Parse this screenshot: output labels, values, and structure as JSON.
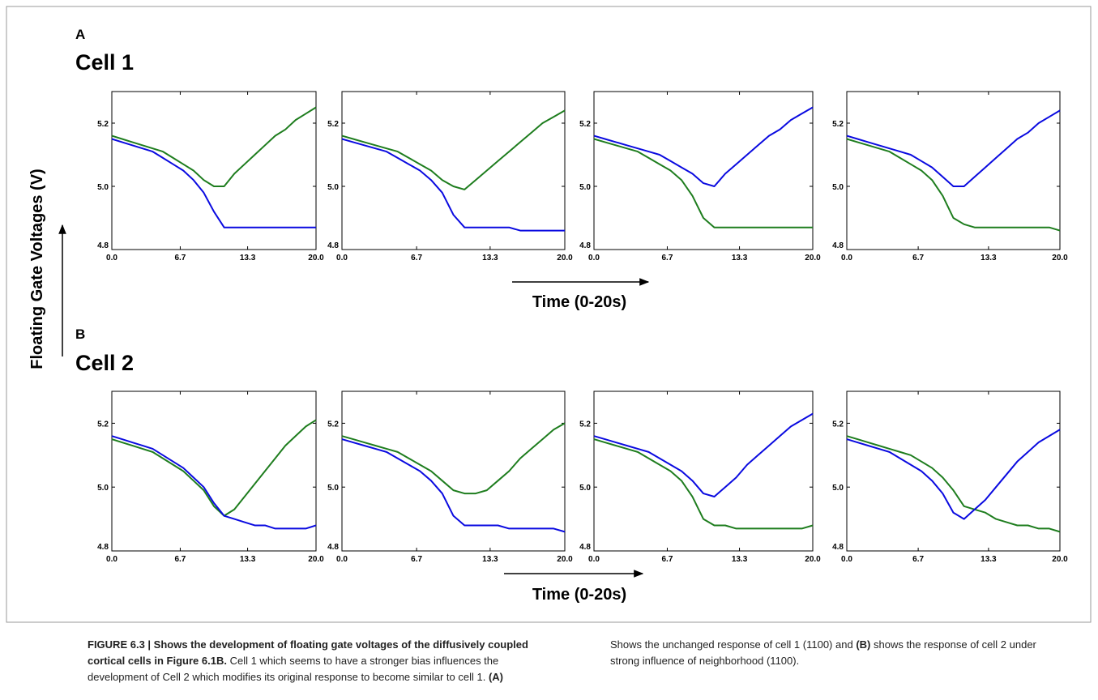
{
  "y_axis_label": "Floating Gate Voltages (V)",
  "panels": [
    {
      "letter": "A",
      "title": "Cell 1",
      "time_label": "Time (0-20s)"
    },
    {
      "letter": "B",
      "title": "Cell 2",
      "time_label": "Time (0-20s)"
    }
  ],
  "caption": {
    "heading": "FIGURE 6.3 | Shows the development of floating gate voltages of the diffusively coupled cortical cells in Figure 6.1B.",
    "text": "Cell 1 which seems to have a stronger bias influences the development of Cell 2 which modifies its original response to become similar to cell 1.",
    "a_label": "(A)",
    "a_text": "Shows the unchanged response of cell 1 (1100) and",
    "b_label": "(B)",
    "b_text": "shows the response of cell 2 under strong influence of neighborhood (1100)."
  },
  "chart_data": [
    {
      "type": "line",
      "x": [
        0,
        1,
        2,
        3,
        4,
        5,
        6,
        7,
        8,
        9,
        10,
        11,
        12,
        13,
        14,
        15,
        16,
        17,
        18,
        19,
        20
      ],
      "xlim": [
        0,
        20
      ],
      "xticks": [
        {
          "value": 0,
          "label": "0.0"
        },
        6.7,
        13.3,
        {
          "value": 20,
          "label": "20.0"
        }
      ],
      "ylim": [
        4.8,
        5.3
      ],
      "yticks": [
        4.8,
        {
          "value": 5.0,
          "label": "5.0"
        },
        5.2
      ],
      "series": [
        {
          "color": "#1e7d1e",
          "values": [
            5.16,
            5.15,
            5.14,
            5.13,
            5.12,
            5.11,
            5.09,
            5.07,
            5.05,
            5.02,
            5.0,
            5.0,
            5.04,
            5.07,
            5.1,
            5.13,
            5.16,
            5.18,
            5.21,
            5.23,
            5.25
          ]
        },
        {
          "color": "#0a0ae0",
          "values": [
            5.15,
            5.14,
            5.13,
            5.12,
            5.11,
            5.09,
            5.07,
            5.05,
            5.02,
            4.98,
            4.92,
            4.87,
            4.87,
            4.87,
            4.87,
            4.87,
            4.87,
            4.87,
            4.87,
            4.87,
            4.87
          ]
        }
      ]
    },
    {
      "type": "line",
      "x": [
        0,
        1,
        2,
        3,
        4,
        5,
        6,
        7,
        8,
        9,
        10,
        11,
        12,
        13,
        14,
        15,
        16,
        17,
        18,
        19,
        20
      ],
      "xlim": [
        0,
        20
      ],
      "xticks": [
        {
          "value": 0,
          "label": "0.0"
        },
        6.7,
        13.3,
        {
          "value": 20,
          "label": "20.0"
        }
      ],
      "ylim": [
        4.8,
        5.3
      ],
      "yticks": [
        4.8,
        {
          "value": 5.0,
          "label": "5.0"
        },
        5.2
      ],
      "series": [
        {
          "color": "#1e7d1e",
          "values": [
            5.16,
            5.15,
            5.14,
            5.13,
            5.12,
            5.11,
            5.09,
            5.07,
            5.05,
            5.02,
            5.0,
            4.99,
            5.02,
            5.05,
            5.08,
            5.11,
            5.14,
            5.17,
            5.2,
            5.22,
            5.24
          ]
        },
        {
          "color": "#0a0ae0",
          "values": [
            5.15,
            5.14,
            5.13,
            5.12,
            5.11,
            5.09,
            5.07,
            5.05,
            5.02,
            4.98,
            4.91,
            4.87,
            4.87,
            4.87,
            4.87,
            4.87,
            4.86,
            4.86,
            4.86,
            4.86,
            4.86
          ]
        }
      ]
    },
    {
      "type": "line",
      "x": [
        0,
        1,
        2,
        3,
        4,
        5,
        6,
        7,
        8,
        9,
        10,
        11,
        12,
        13,
        14,
        15,
        16,
        17,
        18,
        19,
        20
      ],
      "xlim": [
        0,
        20
      ],
      "xticks": [
        {
          "value": 0,
          "label": "0.0"
        },
        6.7,
        13.3,
        {
          "value": 20,
          "label": "20.0"
        }
      ],
      "ylim": [
        4.8,
        5.3
      ],
      "yticks": [
        4.8,
        {
          "value": 5.0,
          "label": "5.0"
        },
        5.2
      ],
      "series": [
        {
          "color": "#0a0ae0",
          "values": [
            5.16,
            5.15,
            5.14,
            5.13,
            5.12,
            5.11,
            5.1,
            5.08,
            5.06,
            5.04,
            5.01,
            5.0,
            5.04,
            5.07,
            5.1,
            5.13,
            5.16,
            5.18,
            5.21,
            5.23,
            5.25
          ]
        },
        {
          "color": "#1e7d1e",
          "values": [
            5.15,
            5.14,
            5.13,
            5.12,
            5.11,
            5.09,
            5.07,
            5.05,
            5.02,
            4.97,
            4.9,
            4.87,
            4.87,
            4.87,
            4.87,
            4.87,
            4.87,
            4.87,
            4.87,
            4.87,
            4.87
          ]
        }
      ]
    },
    {
      "type": "line",
      "x": [
        0,
        1,
        2,
        3,
        4,
        5,
        6,
        7,
        8,
        9,
        10,
        11,
        12,
        13,
        14,
        15,
        16,
        17,
        18,
        19,
        20
      ],
      "xlim": [
        0,
        20
      ],
      "xticks": [
        {
          "value": 0,
          "label": "0.0"
        },
        6.7,
        13.3,
        {
          "value": 20,
          "label": "20.0"
        }
      ],
      "ylim": [
        4.8,
        5.3
      ],
      "yticks": [
        4.8,
        {
          "value": 5.0,
          "label": "5.0"
        },
        5.2
      ],
      "series": [
        {
          "color": "#0a0ae0",
          "values": [
            5.16,
            5.15,
            5.14,
            5.13,
            5.12,
            5.11,
            5.1,
            5.08,
            5.06,
            5.03,
            5.0,
            5.0,
            5.03,
            5.06,
            5.09,
            5.12,
            5.15,
            5.17,
            5.2,
            5.22,
            5.24
          ]
        },
        {
          "color": "#1e7d1e",
          "values": [
            5.15,
            5.14,
            5.13,
            5.12,
            5.11,
            5.09,
            5.07,
            5.05,
            5.02,
            4.97,
            4.9,
            4.88,
            4.87,
            4.87,
            4.87,
            4.87,
            4.87,
            4.87,
            4.87,
            4.87,
            4.86
          ]
        }
      ]
    },
    {
      "type": "line",
      "x": [
        0,
        1,
        2,
        3,
        4,
        5,
        6,
        7,
        8,
        9,
        10,
        11,
        12,
        13,
        14,
        15,
        16,
        17,
        18,
        19,
        20
      ],
      "xlim": [
        0,
        20
      ],
      "xticks": [
        {
          "value": 0,
          "label": "0.0"
        },
        6.7,
        13.3,
        {
          "value": 20,
          "label": "20.0"
        }
      ],
      "ylim": [
        4.8,
        5.3
      ],
      "yticks": [
        4.8,
        {
          "value": 5.0,
          "label": "5.0"
        },
        5.2
      ],
      "series": [
        {
          "color": "#1e7d1e",
          "values": [
            5.15,
            5.14,
            5.13,
            5.12,
            5.11,
            5.09,
            5.07,
            5.05,
            5.02,
            4.99,
            4.94,
            4.91,
            4.93,
            4.97,
            5.01,
            5.05,
            5.09,
            5.13,
            5.16,
            5.19,
            5.21
          ]
        },
        {
          "color": "#0a0ae0",
          "values": [
            5.16,
            5.15,
            5.14,
            5.13,
            5.12,
            5.1,
            5.08,
            5.06,
            5.03,
            5.0,
            4.95,
            4.91,
            4.9,
            4.89,
            4.88,
            4.88,
            4.87,
            4.87,
            4.87,
            4.87,
            4.88
          ]
        }
      ]
    },
    {
      "type": "line",
      "x": [
        0,
        1,
        2,
        3,
        4,
        5,
        6,
        7,
        8,
        9,
        10,
        11,
        12,
        13,
        14,
        15,
        16,
        17,
        18,
        19,
        20
      ],
      "xlim": [
        0,
        20
      ],
      "xticks": [
        {
          "value": 0,
          "label": "0.0"
        },
        6.7,
        13.3,
        {
          "value": 20,
          "label": "20.0"
        }
      ],
      "ylim": [
        4.8,
        5.3
      ],
      "yticks": [
        4.8,
        {
          "value": 5.0,
          "label": "5.0"
        },
        5.2
      ],
      "series": [
        {
          "color": "#1e7d1e",
          "values": [
            5.16,
            5.15,
            5.14,
            5.13,
            5.12,
            5.11,
            5.09,
            5.07,
            5.05,
            5.02,
            4.99,
            4.98,
            4.98,
            4.99,
            5.02,
            5.05,
            5.09,
            5.12,
            5.15,
            5.18,
            5.2
          ]
        },
        {
          "color": "#0a0ae0",
          "values": [
            5.15,
            5.14,
            5.13,
            5.12,
            5.11,
            5.09,
            5.07,
            5.05,
            5.02,
            4.98,
            4.91,
            4.88,
            4.88,
            4.88,
            4.88,
            4.87,
            4.87,
            4.87,
            4.87,
            4.87,
            4.86
          ]
        }
      ]
    },
    {
      "type": "line",
      "x": [
        0,
        1,
        2,
        3,
        4,
        5,
        6,
        7,
        8,
        9,
        10,
        11,
        12,
        13,
        14,
        15,
        16,
        17,
        18,
        19,
        20
      ],
      "xlim": [
        0,
        20
      ],
      "xticks": [
        {
          "value": 0,
          "label": "0.0"
        },
        6.7,
        13.3,
        {
          "value": 20,
          "label": "20.0"
        }
      ],
      "ylim": [
        4.8,
        5.3
      ],
      "yticks": [
        4.8,
        {
          "value": 5.0,
          "label": "5.0"
        },
        5.2
      ],
      "series": [
        {
          "color": "#0a0ae0",
          "values": [
            5.16,
            5.15,
            5.14,
            5.13,
            5.12,
            5.11,
            5.09,
            5.07,
            5.05,
            5.02,
            4.98,
            4.97,
            5.0,
            5.03,
            5.07,
            5.1,
            5.13,
            5.16,
            5.19,
            5.21,
            5.23
          ]
        },
        {
          "color": "#1e7d1e",
          "values": [
            5.15,
            5.14,
            5.13,
            5.12,
            5.11,
            5.09,
            5.07,
            5.05,
            5.02,
            4.97,
            4.9,
            4.88,
            4.88,
            4.87,
            4.87,
            4.87,
            4.87,
            4.87,
            4.87,
            4.87,
            4.88
          ]
        }
      ]
    },
    {
      "type": "line",
      "x": [
        0,
        1,
        2,
        3,
        4,
        5,
        6,
        7,
        8,
        9,
        10,
        11,
        12,
        13,
        14,
        15,
        16,
        17,
        18,
        19,
        20
      ],
      "xlim": [
        0,
        20
      ],
      "xticks": [
        {
          "value": 0,
          "label": "0.0"
        },
        6.7,
        13.3,
        {
          "value": 20,
          "label": "20.0"
        }
      ],
      "ylim": [
        4.8,
        5.3
      ],
      "yticks": [
        4.8,
        {
          "value": 5.0,
          "label": "5.0"
        },
        5.2
      ],
      "series": [
        {
          "color": "#1e7d1e",
          "values": [
            5.16,
            5.15,
            5.14,
            5.13,
            5.12,
            5.11,
            5.1,
            5.08,
            5.06,
            5.03,
            4.99,
            4.94,
            4.93,
            4.92,
            4.9,
            4.89,
            4.88,
            4.88,
            4.87,
            4.87,
            4.86
          ]
        },
        {
          "color": "#0a0ae0",
          "values": [
            5.15,
            5.14,
            5.13,
            5.12,
            5.11,
            5.09,
            5.07,
            5.05,
            5.02,
            4.98,
            4.92,
            4.9,
            4.93,
            4.96,
            5.0,
            5.04,
            5.08,
            5.11,
            5.14,
            5.16,
            5.18
          ]
        }
      ]
    }
  ]
}
